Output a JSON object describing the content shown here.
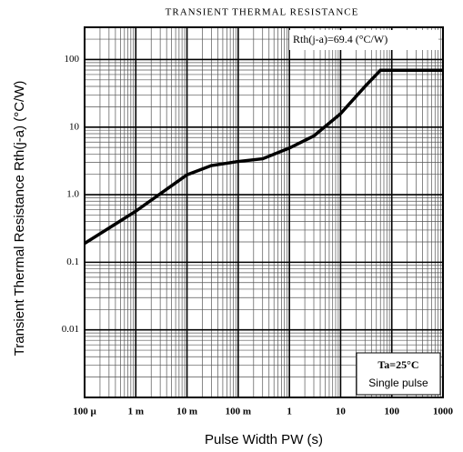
{
  "chart_data": {
    "type": "line",
    "title": "TRANSIENT THERMAL RESISTANCE",
    "x_label": "Pulse Width  PW  (s)",
    "y_label": "Transient Thermal Resistance  Rth(j-a)  (°C/W)",
    "annotations": [
      "Rth(j-a)=69.4  (°C/W)",
      "Ta=25°C",
      "Single pulse"
    ],
    "x": [
      0.0001,
      0.001,
      0.01,
      0.03,
      0.1,
      0.3,
      1,
      3,
      10,
      30,
      60,
      100,
      1000
    ],
    "series": [
      {
        "name": "Rth(j-a)",
        "color": "#000000",
        "values": [
          0.19,
          0.57,
          1.97,
          2.7,
          3.1,
          3.4,
          4.9,
          7.4,
          15.8,
          40,
          69.4,
          69.4,
          69.4
        ]
      }
    ],
    "xscale": "log",
    "yscale": "log",
    "xlim": [
      0.0001,
      1000
    ],
    "ylim": [
      0.001,
      300
    ],
    "xticks": [
      {
        "value": 0.0001,
        "label": "100 µ"
      },
      {
        "value": 0.001,
        "label": "1 m"
      },
      {
        "value": 0.01,
        "label": "10 m"
      },
      {
        "value": 0.1,
        "label": "100 m"
      },
      1,
      10,
      100,
      1000
    ],
    "yticks": [
      100,
      10,
      {
        "value": 1,
        "label": "1.0"
      },
      0.1,
      0.01
    ],
    "grid": true
  }
}
